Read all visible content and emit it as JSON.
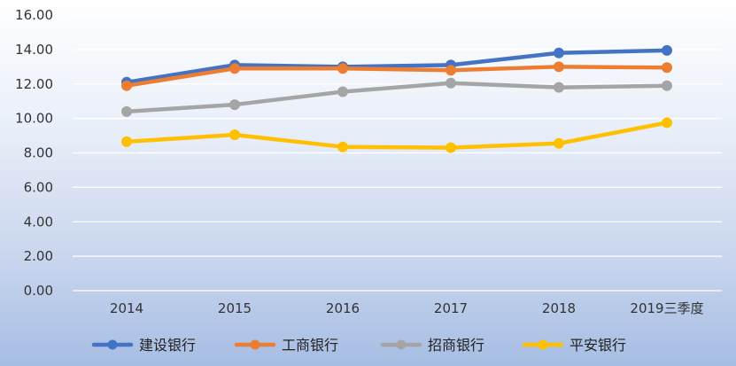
{
  "chart_data": {
    "type": "line",
    "title": "",
    "xlabel": "",
    "ylabel": "",
    "categories": [
      "2014",
      "2015",
      "2016",
      "2017",
      "2018",
      "2019三季度"
    ],
    "ylim": [
      0,
      16
    ],
    "yticks": [
      "0.00",
      "2.00",
      "4.00",
      "6.00",
      "8.00",
      "10.00",
      "12.00",
      "14.00",
      "16.00"
    ],
    "grid": true,
    "legend_position": "bottom",
    "series": [
      {
        "name": "建设银行",
        "color": "#4472C4",
        "values": [
          12.1,
          13.1,
          13.0,
          13.1,
          13.8,
          13.95
        ]
      },
      {
        "name": "工商银行",
        "color": "#ED7D31",
        "values": [
          11.9,
          12.9,
          12.9,
          12.8,
          13.0,
          12.95
        ]
      },
      {
        "name": "招商银行",
        "color": "#A5A5A5",
        "values": [
          10.4,
          10.8,
          11.55,
          12.05,
          11.8,
          11.9
        ]
      },
      {
        "name": "平安银行",
        "color": "#FFC000",
        "values": [
          8.65,
          9.05,
          8.35,
          8.3,
          8.55,
          9.75
        ]
      }
    ]
  }
}
